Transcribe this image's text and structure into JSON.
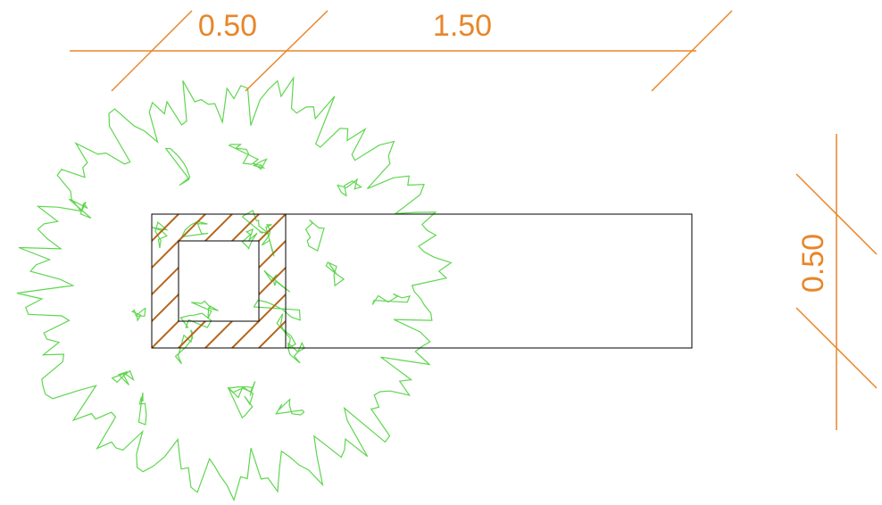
{
  "dimensions": [
    "0.50",
    "1.50",
    "0.50"
  ]
}
